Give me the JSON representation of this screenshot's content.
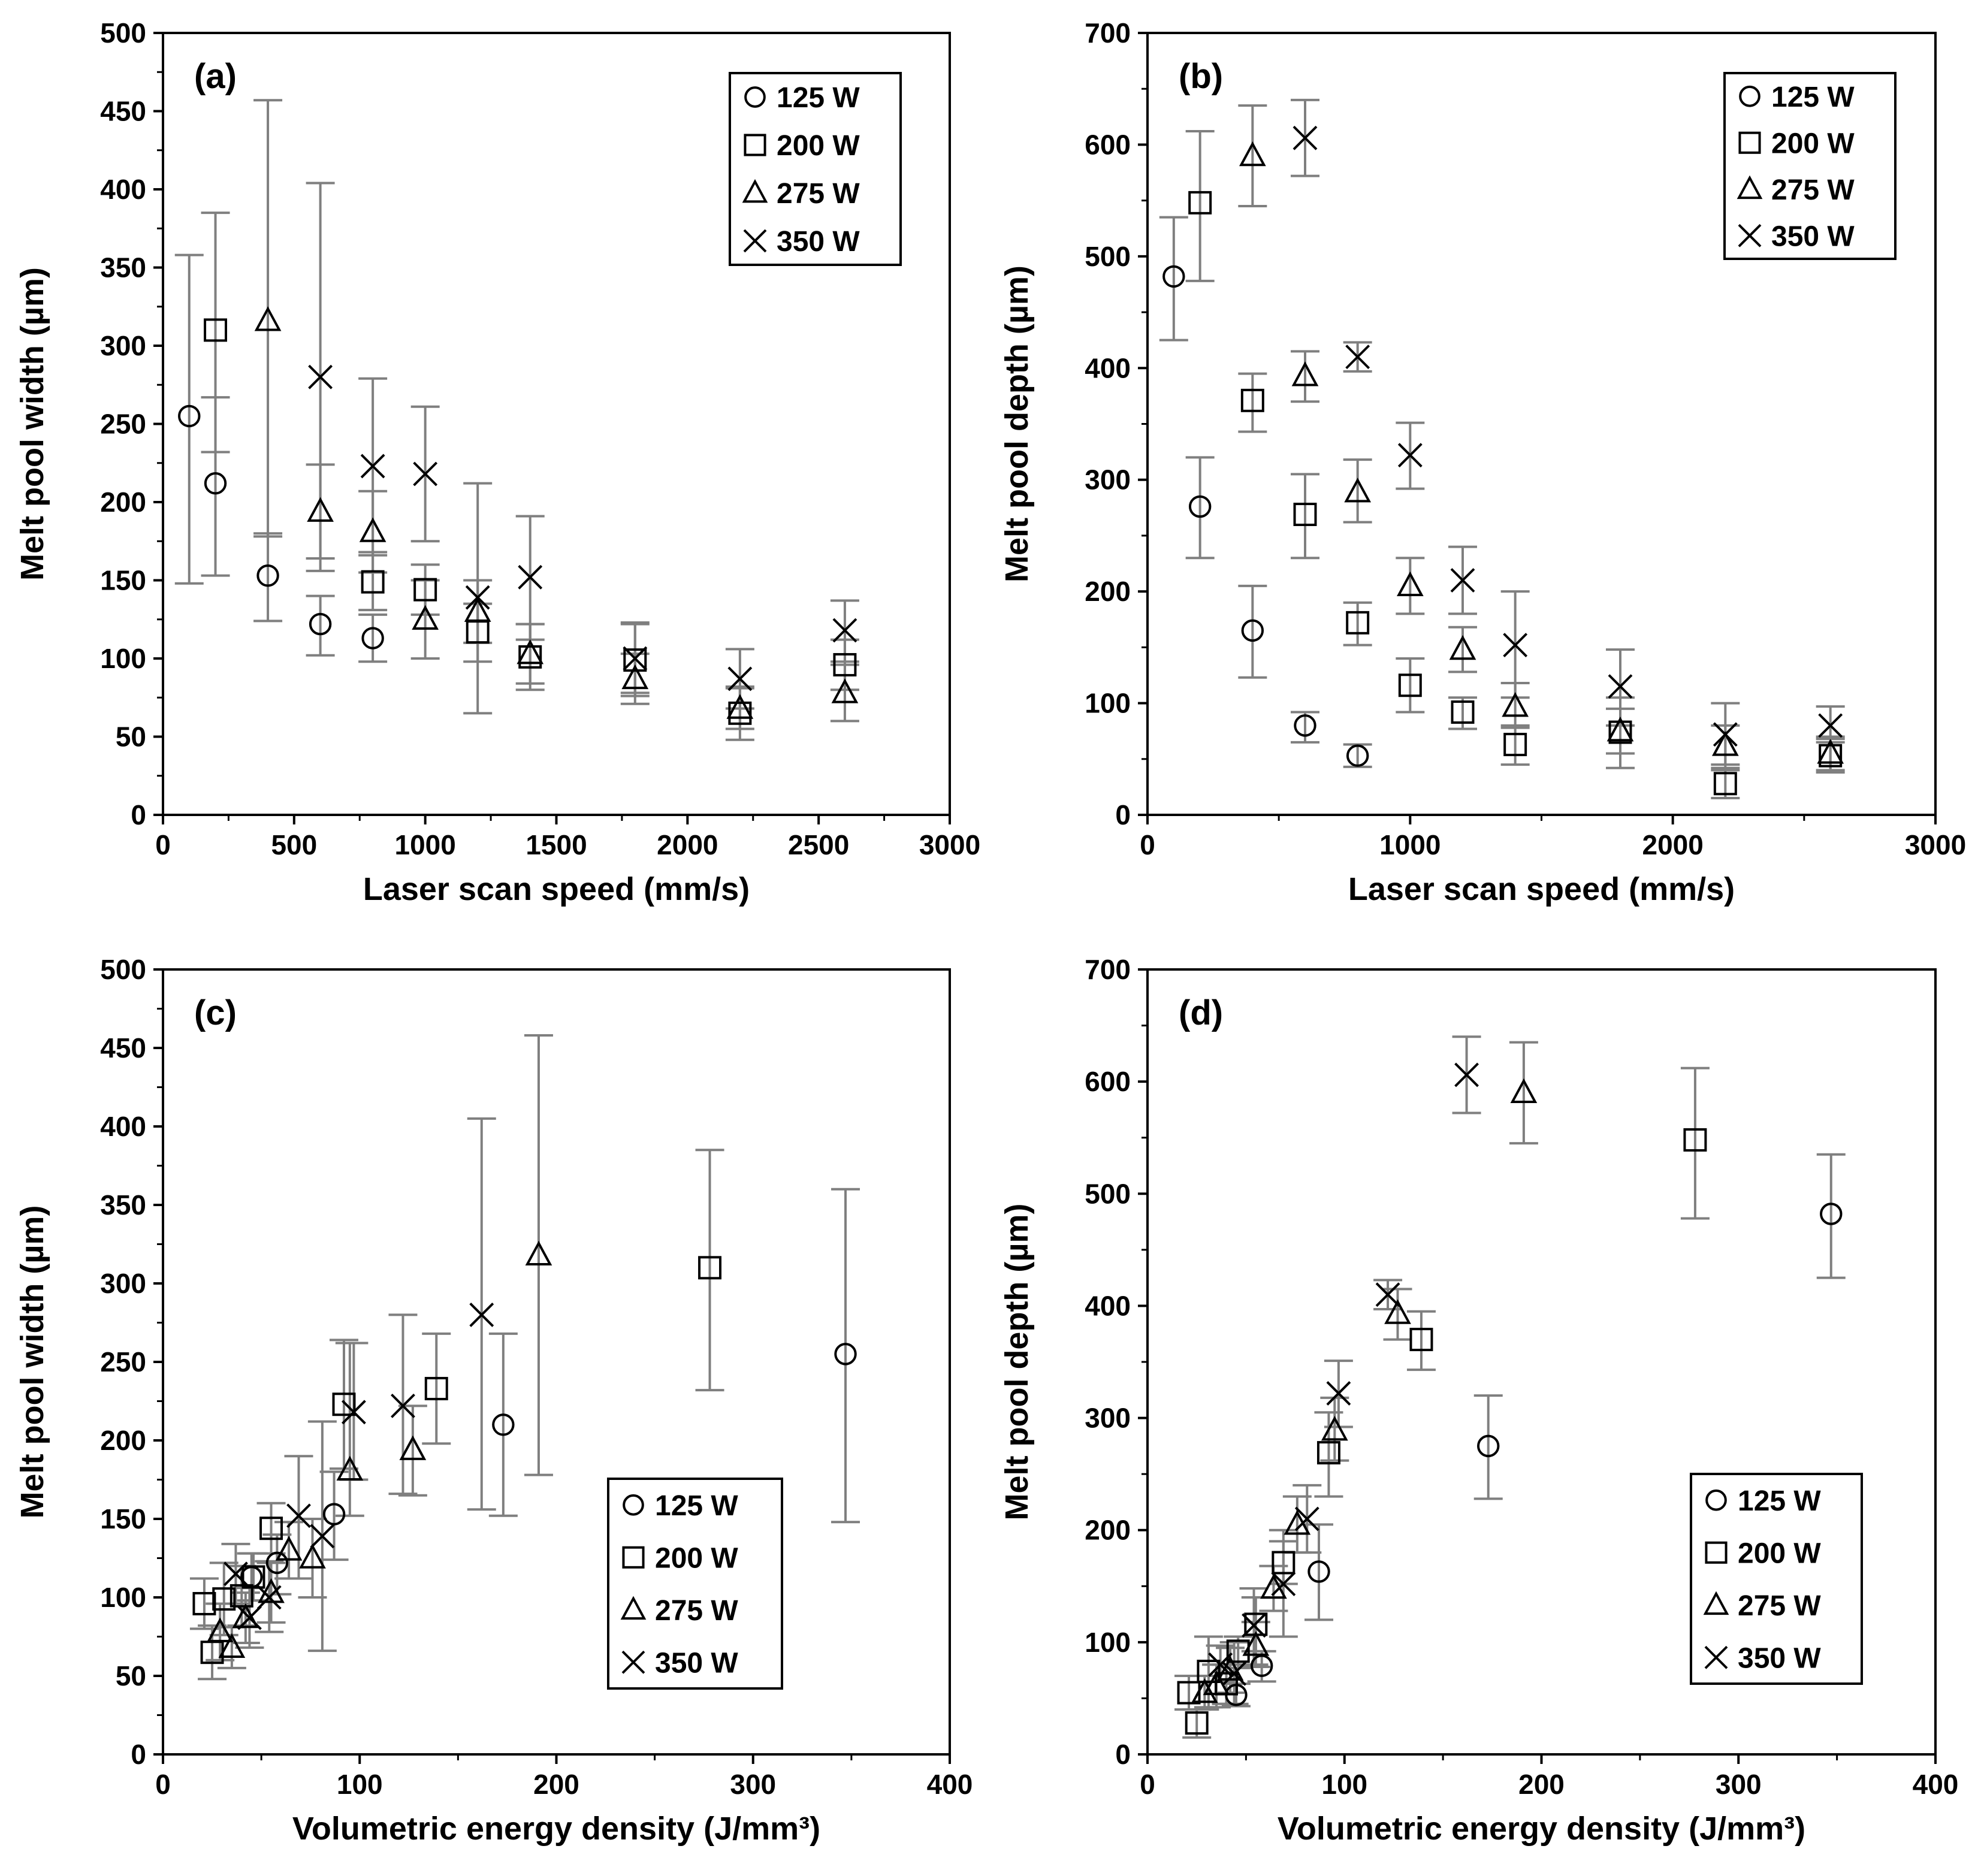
{
  "figure": {
    "background": "#ffffff",
    "marker_color": "#000000",
    "errorbar_color": "#7f7f7f"
  },
  "chart_data": [
    {
      "id": "a",
      "type": "scatter",
      "panel_label": "(a)",
      "xlabel": "Laser scan speed (mm/s)",
      "ylabel": "Melt pool width (µm)",
      "xlim": [
        0,
        3000
      ],
      "ylim": [
        0,
        500
      ],
      "xticks": [
        0,
        500,
        1000,
        1500,
        2000,
        2500,
        3000
      ],
      "yticks": [
        0,
        50,
        100,
        150,
        200,
        250,
        300,
        350,
        400,
        450,
        500
      ],
      "legend_position": "top-right",
      "series": [
        {
          "name": "125 W",
          "marker": "circle",
          "points": [
            {
              "x": 100,
              "y": 255,
              "lo": 148,
              "hi": 358
            },
            {
              "x": 200,
              "y": 212,
              "lo": 153,
              "hi": 267
            },
            {
              "x": 400,
              "y": 153,
              "lo": 124,
              "hi": 180
            },
            {
              "x": 600,
              "y": 122,
              "lo": 102,
              "hi": 140
            },
            {
              "x": 800,
              "y": 113,
              "lo": 98,
              "hi": 128
            }
          ]
        },
        {
          "name": "200 W",
          "marker": "square",
          "points": [
            {
              "x": 200,
              "y": 310,
              "lo": 232,
              "hi": 385
            },
            {
              "x": 800,
              "y": 149,
              "lo": 131,
              "hi": 168
            },
            {
              "x": 1000,
              "y": 144,
              "lo": 128,
              "hi": 160
            },
            {
              "x": 1200,
              "y": 117,
              "lo": 98,
              "hi": 135
            },
            {
              "x": 1400,
              "y": 101,
              "lo": 80,
              "hi": 122
            },
            {
              "x": 1800,
              "y": 99,
              "lo": 76,
              "hi": 122
            },
            {
              "x": 2200,
              "y": 65,
              "lo": 48,
              "hi": 82
            },
            {
              "x": 2600,
              "y": 96,
              "lo": 80,
              "hi": 112
            }
          ]
        },
        {
          "name": "275 W",
          "marker": "triangle",
          "points": [
            {
              "x": 400,
              "y": 316,
              "lo": 178,
              "hi": 457
            },
            {
              "x": 600,
              "y": 194,
              "lo": 164,
              "hi": 224
            },
            {
              "x": 800,
              "y": 181,
              "lo": 155,
              "hi": 207
            },
            {
              "x": 1000,
              "y": 125,
              "lo": 100,
              "hi": 150
            },
            {
              "x": 1200,
              "y": 130,
              "lo": 110,
              "hi": 150
            },
            {
              "x": 1400,
              "y": 103,
              "lo": 84,
              "hi": 122
            },
            {
              "x": 1800,
              "y": 87,
              "lo": 71,
              "hi": 103
            },
            {
              "x": 2200,
              "y": 68,
              "lo": 55,
              "hi": 81
            },
            {
              "x": 2600,
              "y": 78,
              "lo": 60,
              "hi": 96
            }
          ]
        },
        {
          "name": "350 W",
          "marker": "x",
          "points": [
            {
              "x": 600,
              "y": 280,
              "lo": 156,
              "hi": 404
            },
            {
              "x": 800,
              "y": 223,
              "lo": 166,
              "hi": 279
            },
            {
              "x": 1000,
              "y": 218,
              "lo": 175,
              "hi": 261
            },
            {
              "x": 1200,
              "y": 139,
              "lo": 65,
              "hi": 212
            },
            {
              "x": 1400,
              "y": 152,
              "lo": 112,
              "hi": 191
            },
            {
              "x": 1800,
              "y": 100,
              "lo": 78,
              "hi": 123
            },
            {
              "x": 2200,
              "y": 87,
              "lo": 68,
              "hi": 106
            },
            {
              "x": 2600,
              "y": 118,
              "lo": 98,
              "hi": 137
            }
          ]
        }
      ]
    },
    {
      "id": "b",
      "type": "scatter",
      "panel_label": "(b)",
      "xlabel": "Laser scan speed (mm/s)",
      "ylabel": "Melt pool depth (µm)",
      "xlim": [
        0,
        3000
      ],
      "ylim": [
        0,
        700
      ],
      "xticks": [
        0,
        1000,
        2000,
        3000
      ],
      "yticks": [
        0,
        100,
        200,
        300,
        400,
        500,
        600,
        700
      ],
      "legend_position": "top-right",
      "series": [
        {
          "name": "125 W",
          "marker": "circle",
          "points": [
            {
              "x": 100,
              "y": 482,
              "lo": 425,
              "hi": 535
            },
            {
              "x": 200,
              "y": 276,
              "lo": 230,
              "hi": 320
            },
            {
              "x": 400,
              "y": 165,
              "lo": 123,
              "hi": 205
            },
            {
              "x": 600,
              "y": 80,
              "lo": 65,
              "hi": 92
            },
            {
              "x": 800,
              "y": 53,
              "lo": 43,
              "hi": 63
            }
          ]
        },
        {
          "name": "200 W",
          "marker": "square",
          "points": [
            {
              "x": 200,
              "y": 548,
              "lo": 478,
              "hi": 612
            },
            {
              "x": 400,
              "y": 371,
              "lo": 343,
              "hi": 395
            },
            {
              "x": 600,
              "y": 269,
              "lo": 230,
              "hi": 305
            },
            {
              "x": 800,
              "y": 172,
              "lo": 152,
              "hi": 190
            },
            {
              "x": 1000,
              "y": 116,
              "lo": 92,
              "hi": 140
            },
            {
              "x": 1200,
              "y": 92,
              "lo": 77,
              "hi": 105
            },
            {
              "x": 1400,
              "y": 63,
              "lo": 45,
              "hi": 80
            },
            {
              "x": 1800,
              "y": 74,
              "lo": 42,
              "hi": 105
            },
            {
              "x": 2200,
              "y": 28,
              "lo": 15,
              "hi": 40
            },
            {
              "x": 2600,
              "y": 53,
              "lo": 38,
              "hi": 68
            }
          ]
        },
        {
          "name": "275 W",
          "marker": "triangle",
          "points": [
            {
              "x": 400,
              "y": 590,
              "lo": 545,
              "hi": 635
            },
            {
              "x": 600,
              "y": 393,
              "lo": 370,
              "hi": 415
            },
            {
              "x": 800,
              "y": 289,
              "lo": 262,
              "hi": 318
            },
            {
              "x": 1000,
              "y": 205,
              "lo": 180,
              "hi": 230
            },
            {
              "x": 1200,
              "y": 148,
              "lo": 128,
              "hi": 168
            },
            {
              "x": 1400,
              "y": 97,
              "lo": 78,
              "hi": 118
            },
            {
              "x": 1800,
              "y": 75,
              "lo": 55,
              "hi": 95
            },
            {
              "x": 2200,
              "y": 62,
              "lo": 42,
              "hi": 80
            },
            {
              "x": 2600,
              "y": 55,
              "lo": 40,
              "hi": 70
            }
          ]
        },
        {
          "name": "350 W",
          "marker": "x",
          "points": [
            {
              "x": 600,
              "y": 606,
              "lo": 572,
              "hi": 640
            },
            {
              "x": 800,
              "y": 410,
              "lo": 397,
              "hi": 423
            },
            {
              "x": 1000,
              "y": 322,
              "lo": 292,
              "hi": 351
            },
            {
              "x": 1200,
              "y": 210,
              "lo": 180,
              "hi": 240
            },
            {
              "x": 1400,
              "y": 152,
              "lo": 105,
              "hi": 200
            },
            {
              "x": 1800,
              "y": 115,
              "lo": 80,
              "hi": 148
            },
            {
              "x": 2200,
              "y": 72,
              "lo": 45,
              "hi": 100
            },
            {
              "x": 2600,
              "y": 80,
              "lo": 65,
              "hi": 97
            }
          ]
        }
      ]
    },
    {
      "id": "c",
      "type": "scatter",
      "panel_label": "(c)",
      "xlabel": "Volumetric energy density (J/mm³)",
      "ylabel": "Melt pool width (µm)",
      "xlim": [
        0,
        400
      ],
      "ylim": [
        0,
        500
      ],
      "xticks": [
        0,
        100,
        200,
        300,
        400
      ],
      "yticks": [
        0,
        50,
        100,
        150,
        200,
        250,
        300,
        350,
        400,
        450,
        500
      ],
      "legend_position": "bottom-right",
      "series": [
        {
          "name": "125 W",
          "marker": "circle",
          "points": [
            {
              "x": 347,
              "y": 255,
              "lo": 148,
              "hi": 360
            },
            {
              "x": 173,
              "y": 210,
              "lo": 152,
              "hi": 268
            },
            {
              "x": 87,
              "y": 153,
              "lo": 124,
              "hi": 180
            },
            {
              "x": 58,
              "y": 122,
              "lo": 102,
              "hi": 140
            },
            {
              "x": 45,
              "y": 113,
              "lo": 98,
              "hi": 128
            }
          ]
        },
        {
          "name": "200 W",
          "marker": "square",
          "points": [
            {
              "x": 278,
              "y": 310,
              "lo": 232,
              "hi": 385
            },
            {
              "x": 139,
              "y": 233,
              "lo": 198,
              "hi": 268
            },
            {
              "x": 92,
              "y": 223,
              "lo": 182,
              "hi": 264
            },
            {
              "x": 55,
              "y": 144,
              "lo": 128,
              "hi": 160
            },
            {
              "x": 46,
              "y": 113,
              "lo": 98,
              "hi": 128
            },
            {
              "x": 40,
              "y": 101,
              "lo": 82,
              "hi": 120
            },
            {
              "x": 31,
              "y": 99,
              "lo": 76,
              "hi": 122
            },
            {
              "x": 25,
              "y": 65,
              "lo": 48,
              "hi": 82
            },
            {
              "x": 21,
              "y": 96,
              "lo": 80,
              "hi": 112
            }
          ]
        },
        {
          "name": "275 W",
          "marker": "triangle",
          "points": [
            {
              "x": 191,
              "y": 318,
              "lo": 178,
              "hi": 458
            },
            {
              "x": 127,
              "y": 194,
              "lo": 165,
              "hi": 222
            },
            {
              "x": 95,
              "y": 181,
              "lo": 152,
              "hi": 262
            },
            {
              "x": 76,
              "y": 125,
              "lo": 100,
              "hi": 150
            },
            {
              "x": 64,
              "y": 130,
              "lo": 112,
              "hi": 148
            },
            {
              "x": 55,
              "y": 103,
              "lo": 84,
              "hi": 122
            },
            {
              "x": 42,
              "y": 87,
              "lo": 71,
              "hi": 103
            },
            {
              "x": 35,
              "y": 68,
              "lo": 55,
              "hi": 81
            },
            {
              "x": 29,
              "y": 78,
              "lo": 60,
              "hi": 96
            }
          ]
        },
        {
          "name": "350 W",
          "marker": "x",
          "points": [
            {
              "x": 162,
              "y": 280,
              "lo": 156,
              "hi": 405
            },
            {
              "x": 122,
              "y": 222,
              "lo": 166,
              "hi": 280
            },
            {
              "x": 97,
              "y": 218,
              "lo": 175,
              "hi": 262
            },
            {
              "x": 81,
              "y": 139,
              "lo": 66,
              "hi": 212
            },
            {
              "x": 69,
              "y": 152,
              "lo": 112,
              "hi": 190
            },
            {
              "x": 54,
              "y": 100,
              "lo": 78,
              "hi": 123
            },
            {
              "x": 44,
              "y": 87,
              "lo": 68,
              "hi": 106
            },
            {
              "x": 37,
              "y": 115,
              "lo": 96,
              "hi": 134
            }
          ]
        }
      ]
    },
    {
      "id": "d",
      "type": "scatter",
      "panel_label": "(d)",
      "xlabel": "Volumetric energy density (J/mm³)",
      "ylabel": "Melt pool depth (µm)",
      "xlim": [
        0,
        400
      ],
      "ylim": [
        0,
        700
      ],
      "xticks": [
        0,
        100,
        200,
        300,
        400
      ],
      "yticks": [
        0,
        100,
        200,
        300,
        400,
        500,
        600,
        700
      ],
      "legend_position": "bottom-right",
      "series": [
        {
          "name": "125 W",
          "marker": "circle",
          "points": [
            {
              "x": 347,
              "y": 482,
              "lo": 425,
              "hi": 535
            },
            {
              "x": 173,
              "y": 275,
              "lo": 228,
              "hi": 320
            },
            {
              "x": 87,
              "y": 163,
              "lo": 120,
              "hi": 205
            },
            {
              "x": 58,
              "y": 79,
              "lo": 65,
              "hi": 92
            },
            {
              "x": 45,
              "y": 53,
              "lo": 43,
              "hi": 63
            }
          ]
        },
        {
          "name": "200 W",
          "marker": "square",
          "points": [
            {
              "x": 278,
              "y": 548,
              "lo": 478,
              "hi": 612
            },
            {
              "x": 139,
              "y": 370,
              "lo": 343,
              "hi": 395
            },
            {
              "x": 92,
              "y": 269,
              "lo": 230,
              "hi": 305
            },
            {
              "x": 69,
              "y": 171,
              "lo": 152,
              "hi": 190
            },
            {
              "x": 55,
              "y": 116,
              "lo": 92,
              "hi": 140
            },
            {
              "x": 46,
              "y": 92,
              "lo": 77,
              "hi": 105
            },
            {
              "x": 40,
              "y": 63,
              "lo": 45,
              "hi": 80
            },
            {
              "x": 31,
              "y": 74,
              "lo": 42,
              "hi": 105
            },
            {
              "x": 25,
              "y": 28,
              "lo": 15,
              "hi": 40
            },
            {
              "x": 21,
              "y": 55,
              "lo": 40,
              "hi": 70
            }
          ]
        },
        {
          "name": "275 W",
          "marker": "triangle",
          "points": [
            {
              "x": 191,
              "y": 590,
              "lo": 545,
              "hi": 635
            },
            {
              "x": 127,
              "y": 393,
              "lo": 370,
              "hi": 415
            },
            {
              "x": 95,
              "y": 289,
              "lo": 262,
              "hi": 318
            },
            {
              "x": 76,
              "y": 205,
              "lo": 180,
              "hi": 230
            },
            {
              "x": 64,
              "y": 148,
              "lo": 128,
              "hi": 168
            },
            {
              "x": 55,
              "y": 97,
              "lo": 78,
              "hi": 118
            },
            {
              "x": 42,
              "y": 75,
              "lo": 55,
              "hi": 95
            },
            {
              "x": 35,
              "y": 62,
              "lo": 42,
              "hi": 80
            },
            {
              "x": 29,
              "y": 55,
              "lo": 40,
              "hi": 70
            }
          ]
        },
        {
          "name": "350 W",
          "marker": "x",
          "points": [
            {
              "x": 162,
              "y": 606,
              "lo": 572,
              "hi": 640
            },
            {
              "x": 122,
              "y": 410,
              "lo": 397,
              "hi": 423
            },
            {
              "x": 97,
              "y": 322,
              "lo": 292,
              "hi": 351
            },
            {
              "x": 81,
              "y": 210,
              "lo": 180,
              "hi": 240
            },
            {
              "x": 69,
              "y": 152,
              "lo": 105,
              "hi": 200
            },
            {
              "x": 54,
              "y": 115,
              "lo": 80,
              "hi": 148
            },
            {
              "x": 44,
              "y": 72,
              "lo": 45,
              "hi": 100
            },
            {
              "x": 37,
              "y": 80,
              "lo": 65,
              "hi": 97
            }
          ]
        }
      ]
    }
  ]
}
